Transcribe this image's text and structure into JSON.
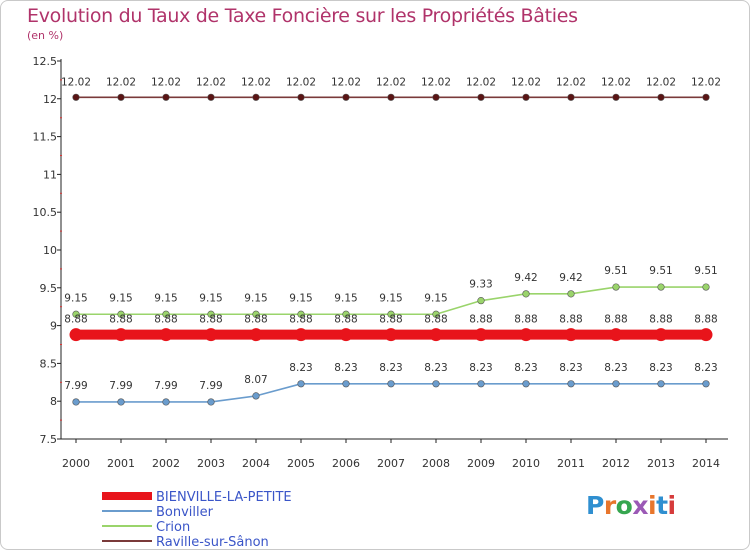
{
  "title": "Evolution du Taux de Taxe Foncière sur les Propriétés Bâties",
  "subtitle": "(en %)",
  "logo": {
    "text": "Proxiti",
    "colors": [
      "#2f8fd0",
      "#e8762c",
      "#36a64f",
      "#9b59b6",
      "#e8762c",
      "#2f8fd0",
      "#d63b3b"
    ]
  },
  "chart_data": {
    "type": "line",
    "x": [
      "2000",
      "2001",
      "2002",
      "2003",
      "2004",
      "2005",
      "2006",
      "2007",
      "2008",
      "2009",
      "2010",
      "2011",
      "2012",
      "2013",
      "2014"
    ],
    "ylim": [
      7.5,
      12.5
    ],
    "yticks": [
      "7.5",
      "8",
      "8.5",
      "9",
      "9.5",
      "10",
      "10.5",
      "11",
      "11.5",
      "12",
      "12.5"
    ],
    "grid": false,
    "legend_position": "bottom-left",
    "series": [
      {
        "name": "BIENVILLE-LA-PETITE",
        "color": "#e8141b",
        "values": [
          8.88,
          8.88,
          8.88,
          8.88,
          8.88,
          8.88,
          8.88,
          8.88,
          8.88,
          8.88,
          8.88,
          8.88,
          8.88,
          8.88,
          8.88
        ],
        "labels": [
          "8.88",
          "8.88",
          "8.88",
          "8.88",
          "8.88",
          "8.88",
          "8.88",
          "8.88",
          "8.88",
          "8.88",
          "8.88",
          "8.88",
          "8.88",
          "8.88",
          "8.88"
        ]
      },
      {
        "name": "Bonviller",
        "color": "#6a9ccd",
        "values": [
          7.99,
          7.99,
          7.99,
          7.99,
          8.07,
          8.23,
          8.23,
          8.23,
          8.23,
          8.23,
          8.23,
          8.23,
          8.23,
          8.23,
          8.23
        ],
        "labels": [
          "7.99",
          "7.99",
          "7.99",
          "7.99",
          "8.07",
          "8.23",
          "8.23",
          "8.23",
          "8.23",
          "8.23",
          "8.23",
          "8.23",
          "8.23",
          "8.23",
          "8.23"
        ]
      },
      {
        "name": "Crion",
        "color": "#9ad46b",
        "values": [
          9.15,
          9.15,
          9.15,
          9.15,
          9.15,
          9.15,
          9.15,
          9.15,
          9.15,
          9.33,
          9.42,
          9.42,
          9.51,
          9.51,
          9.51
        ],
        "labels": [
          "9.15",
          "9.15",
          "9.15",
          "9.15",
          "9.15",
          "9.15",
          "9.15",
          "9.15",
          "9.15",
          "9.33",
          "9.42",
          "9.42",
          "9.51",
          "9.51",
          "9.51"
        ]
      },
      {
        "name": "Raville-sur-Sânon",
        "color": "#7a3a3a",
        "values": [
          12.02,
          12.02,
          12.02,
          12.02,
          12.02,
          12.02,
          12.02,
          12.02,
          12.02,
          12.02,
          12.02,
          12.02,
          12.02,
          12.02,
          12.02
        ],
        "labels": [
          "12.02",
          "12.02",
          "12.02",
          "12.02",
          "12.02",
          "12.02",
          "12.02",
          "12.02",
          "12.02",
          "12.02",
          "12.02",
          "12.02",
          "12.02",
          "12.02",
          "12.02"
        ]
      }
    ]
  }
}
